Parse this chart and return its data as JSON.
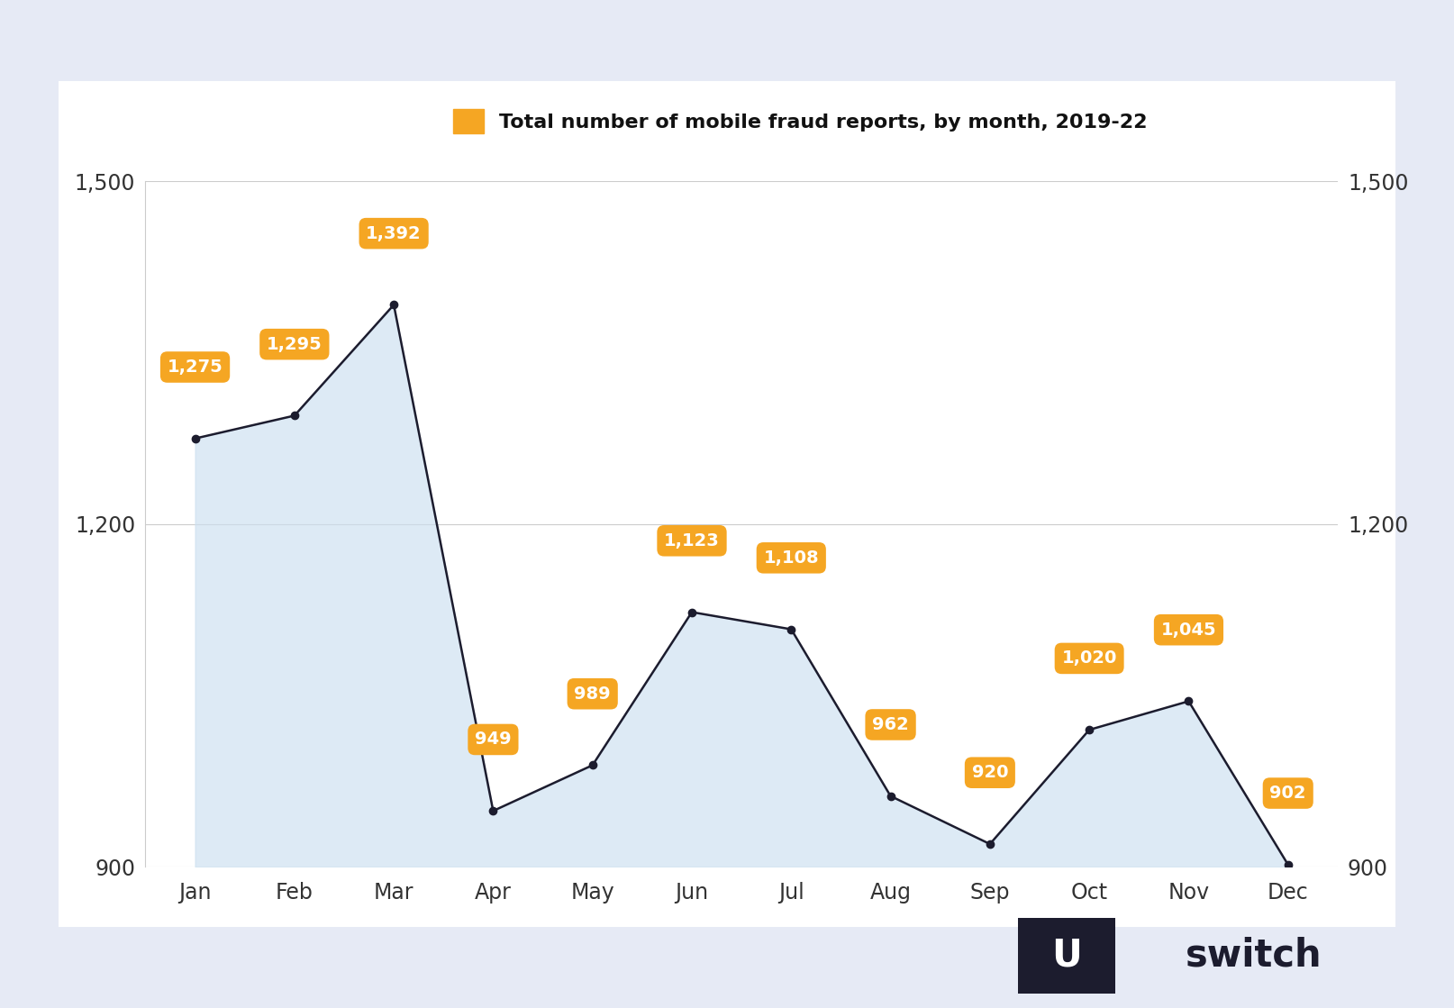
{
  "months": [
    "Jan",
    "Feb",
    "Mar",
    "Apr",
    "May",
    "Jun",
    "Jul",
    "Aug",
    "Sep",
    "Oct",
    "Nov",
    "Dec"
  ],
  "values": [
    1275,
    1295,
    1392,
    949,
    989,
    1123,
    1108,
    962,
    920,
    1020,
    1045,
    902
  ],
  "title": "Total number of mobile fraud reports, by month, 2019-22",
  "ylim": [
    900,
    1500
  ],
  "yticks": [
    900,
    1200,
    1500
  ],
  "line_color": "#1c1c2e",
  "fill_color": "#cce0f0",
  "fill_alpha": 0.65,
  "marker_color": "#1c1c2e",
  "label_bg_color": "#f5a623",
  "label_text_color": "#ffffff",
  "outer_bg_color": "#e6eaf5",
  "inner_bg_color": "#ffffff",
  "legend_square_color": "#f5a623",
  "logo_box_color": "#1c1c2e",
  "grid_color": "#cccccc",
  "tick_color": "#333333",
  "logo_text": "switch"
}
